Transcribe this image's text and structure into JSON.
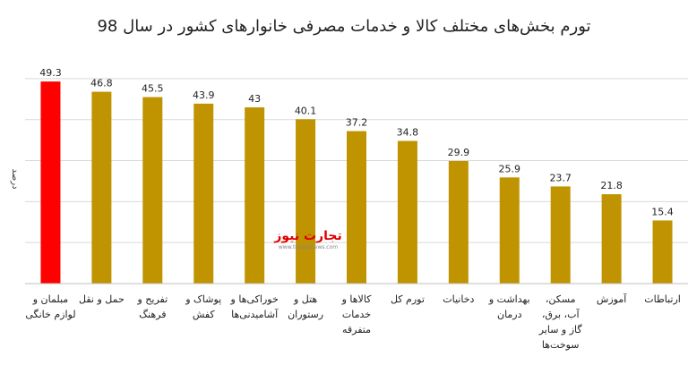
{
  "chart_data": {
    "type": "bar",
    "title": "تورم بخش‌های مختلف کالا و خدمات مصرفی خانوارهای کشور در سال 98",
    "ylabel": "درصد",
    "ylim": [
      0,
      55
    ],
    "grid": true,
    "categories": [
      [
        "مبلمان و",
        "لوازم خانگی"
      ],
      [
        "حمل و نقل"
      ],
      [
        "تفریح و",
        "فرهنگ"
      ],
      [
        "پوشاک و",
        "کفش"
      ],
      [
        "خوراکی‌ها و",
        "آشامیدنی‌ها"
      ],
      [
        "هتل و",
        "رستوران"
      ],
      [
        "کالاها و",
        "خدمات",
        "متفرقه"
      ],
      [
        "تورم کل"
      ],
      [
        "دخانیات"
      ],
      [
        "بهداشت و",
        "درمان"
      ],
      [
        "مسکن،",
        "آب، برق،",
        "گاز و سایر",
        "سوخت‌ها"
      ],
      [
        "آموزش"
      ],
      [
        "ارتباطات"
      ]
    ],
    "values": [
      49.3,
      46.8,
      45.5,
      43.9,
      43,
      40.1,
      37.2,
      34.8,
      29.9,
      25.9,
      23.7,
      21.8,
      15.4
    ],
    "value_labels": [
      "49.3",
      "46.8",
      "45.5",
      "43.9",
      "43",
      "40.1",
      "37.2",
      "34.8",
      "29.9",
      "25.9",
      "23.7",
      "21.8",
      "15.4"
    ],
    "highlight_index": 0,
    "colors": {
      "bar": "#C09300",
      "highlight": "#FF0000",
      "grid": "#D9D9D9",
      "axis": "#BFBFBF"
    }
  },
  "watermark": {
    "main": "تجارت نیوز",
    "sub": "www.tejaratnews.com",
    "colors": {
      "part1": "#1A1A1A",
      "part2": "#E00000"
    }
  }
}
